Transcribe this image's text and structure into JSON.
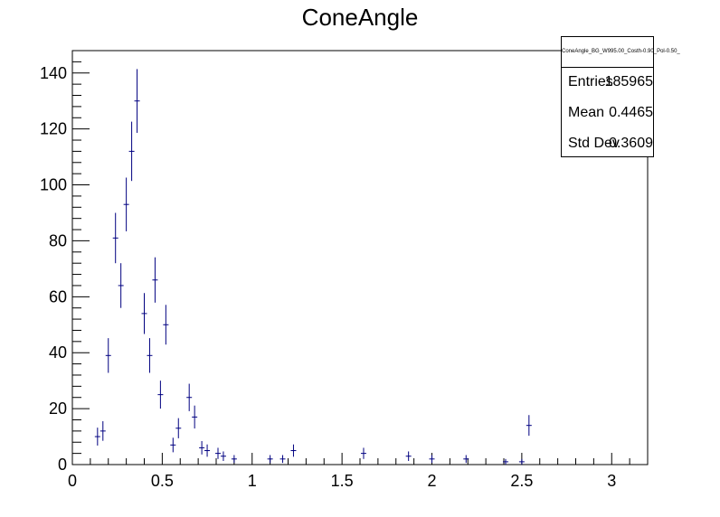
{
  "chart_data": {
    "type": "scatter",
    "title": "ConeAngle",
    "xlabel": "",
    "ylabel": "",
    "xlim": [
      0,
      3.2
    ],
    "ylim": [
      0,
      148
    ],
    "xticks": [
      "0",
      "0.5",
      "1",
      "1.5",
      "2",
      "2.5",
      "3"
    ],
    "yticks": [
      "0",
      "20",
      "40",
      "60",
      "80",
      "100",
      "120",
      "140"
    ],
    "grid": false,
    "legend": "none",
    "series": [
      {
        "color": "#000080",
        "x": [
          0.14,
          0.17,
          0.2,
          0.24,
          0.27,
          0.3,
          0.33,
          0.36,
          0.4,
          0.43,
          0.46,
          0.49,
          0.52,
          0.56,
          0.59,
          0.65,
          0.68,
          0.72,
          0.75,
          0.81,
          0.84,
          0.9,
          1.1,
          1.17,
          1.23,
          1.62,
          1.87,
          2.0,
          2.19,
          2.41,
          2.5,
          2.54
        ],
        "y": [
          10,
          12,
          39,
          81,
          64,
          93,
          112,
          130,
          54,
          39,
          66,
          25,
          50,
          7,
          13,
          24,
          17,
          6,
          5,
          4,
          3,
          2,
          2,
          2,
          5,
          4,
          3,
          2,
          2,
          1,
          1,
          14
        ],
        "err": [
          3.2,
          3.5,
          6.2,
          9.0,
          8.0,
          9.6,
          10.6,
          11.4,
          7.3,
          6.2,
          8.1,
          5.0,
          7.1,
          2.6,
          3.6,
          4.9,
          4.1,
          2.4,
          2.2,
          2.0,
          1.7,
          1.4,
          1.4,
          1.4,
          2.2,
          2.0,
          1.7,
          1.4,
          1.4,
          1.0,
          1.0,
          3.7
        ]
      }
    ]
  },
  "stats": {
    "title": "ConeAngle_BG_W995.00_Costh-0.90_Pol-0.50_",
    "entries_label": "Entries",
    "entries_value": "185965",
    "mean_label": "Mean",
    "mean_value": "0.4465",
    "std_label": "Std Dev",
    "std_value": "0.3609"
  }
}
